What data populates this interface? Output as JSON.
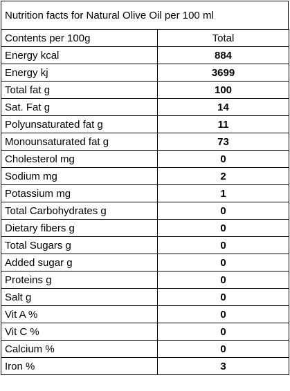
{
  "title": "Nutrition facts for Natural Olive Oil per 100 ml",
  "table": {
    "header": [
      "Contents per 100g",
      "Total"
    ],
    "rows": [
      [
        "Energy kcal",
        884
      ],
      [
        "Energy kj",
        3699
      ],
      [
        "Total fat g",
        100
      ],
      [
        "Sat. Fat g",
        14
      ],
      [
        "Polyunsaturated fat g",
        11
      ],
      [
        "Monounsaturated fat g",
        73
      ],
      [
        "Cholesterol mg",
        0
      ],
      [
        "Sodium mg",
        2
      ],
      [
        "Potassium mg",
        1
      ],
      [
        "Total Carbohydrates g",
        0
      ],
      [
        "Dietary fibers g",
        0
      ],
      [
        "Total Sugars g",
        0
      ],
      [
        "Added sugar g",
        0
      ],
      [
        "Proteins g",
        0
      ],
      [
        "Salt g",
        0
      ],
      [
        "Vit A %",
        0
      ],
      [
        "Vit C %",
        0
      ],
      [
        "Calcium %",
        0
      ],
      [
        "Iron %",
        3
      ]
    ]
  }
}
